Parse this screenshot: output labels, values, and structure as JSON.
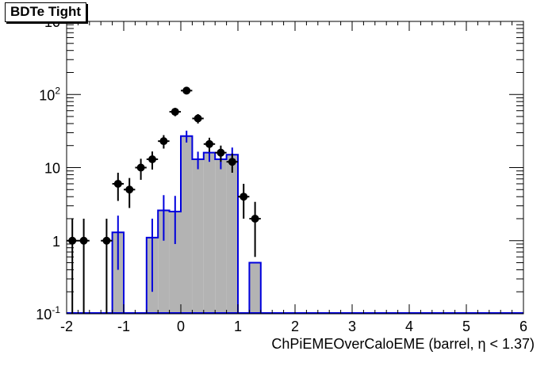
{
  "chart_data": {
    "type": "histogram",
    "title": "BDTe Tight",
    "xlabel": "ChPiEMEOverCaloEME (barrel,  η < 1.37)",
    "ylabel": "",
    "xlim": [
      -2,
      6
    ],
    "ylim": [
      0.1,
      1000
    ],
    "log_y": true,
    "x_ticks": [
      "-2",
      "-1",
      "0",
      "1",
      "2",
      "3",
      "4",
      "5",
      "6"
    ],
    "y_ticks": [
      {
        "value": 0.1,
        "base": "10",
        "exp": "-1",
        "label": ""
      },
      {
        "value": 1,
        "base": "",
        "exp": "",
        "label": "1"
      },
      {
        "value": 10,
        "base": "",
        "exp": "",
        "label": "10"
      },
      {
        "value": 100,
        "base": "10",
        "exp": "2",
        "label": ""
      },
      {
        "value": 1000,
        "base": "10",
        "exp": "",
        "label": ""
      }
    ],
    "series": [
      {
        "kind": "filled-histogram",
        "fill": "#b3b3b3",
        "line": "#0000dd",
        "bin_width": 0.2,
        "bins": [
          {
            "x": -1.2,
            "y": 1.3,
            "err": 0.9
          },
          {
            "x": -0.6,
            "y": 1.1,
            "err": 0.9
          },
          {
            "x": -0.4,
            "y": 2.6,
            "err": 1.6
          },
          {
            "x": -0.2,
            "y": 2.5,
            "err": 1.6
          },
          {
            "x": 0.0,
            "y": 27,
            "err": 5
          },
          {
            "x": 0.2,
            "y": 13,
            "err": 3.5
          },
          {
            "x": 0.4,
            "y": 16,
            "err": 4
          },
          {
            "x": 0.6,
            "y": 13,
            "err": 3.5
          },
          {
            "x": 0.8,
            "y": 15,
            "err": 3.8
          },
          {
            "x": 1.2,
            "y": 0.5,
            "err": 0
          }
        ]
      },
      {
        "kind": "points",
        "color": "#000000",
        "x_half_width": 0.1,
        "points": [
          {
            "x": -1.9,
            "y": 1,
            "lo": 0.1,
            "hi": 2
          },
          {
            "x": -1.7,
            "y": 1,
            "lo": 0.1,
            "hi": 2
          },
          {
            "x": -1.3,
            "y": 1,
            "lo": 0.1,
            "hi": 2
          },
          {
            "x": -1.1,
            "y": 6,
            "lo": 3.5,
            "hi": 8.5
          },
          {
            "x": -0.9,
            "y": 5,
            "lo": 2.8,
            "hi": 7.2
          },
          {
            "x": -0.7,
            "y": 10,
            "lo": 6.8,
            "hi": 13.2
          },
          {
            "x": -0.5,
            "y": 13,
            "lo": 9.4,
            "hi": 16.6
          },
          {
            "x": -0.3,
            "y": 23,
            "lo": 18.2,
            "hi": 27.8
          },
          {
            "x": -0.1,
            "y": 58,
            "lo": 50.4,
            "hi": 65.6
          },
          {
            "x": 0.1,
            "y": 113,
            "lo": 102.4,
            "hi": 123.6
          },
          {
            "x": 0.3,
            "y": 47,
            "lo": 40.1,
            "hi": 53.9
          },
          {
            "x": 0.5,
            "y": 21,
            "lo": 16.4,
            "hi": 25.6
          },
          {
            "x": 0.7,
            "y": 16,
            "lo": 12,
            "hi": 20
          },
          {
            "x": 0.9,
            "y": 12,
            "lo": 8.5,
            "hi": 15.5
          },
          {
            "x": 1.1,
            "y": 4,
            "lo": 2,
            "hi": 6
          },
          {
            "x": 1.3,
            "y": 2,
            "lo": 0.6,
            "hi": 3.4
          }
        ]
      }
    ],
    "grid": false,
    "legend": "none"
  }
}
